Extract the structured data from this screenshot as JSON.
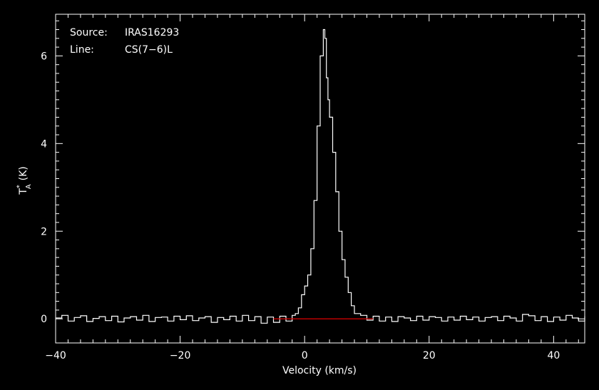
{
  "chart_data": {
    "type": "line",
    "title": "",
    "annotations": [
      {
        "key": "Source:",
        "value": "IRAS16293"
      },
      {
        "key": "Line:",
        "value": "CS(7−6)L"
      }
    ],
    "xlabel": "Velocity (km/s)",
    "ylabel": {
      "symbol": "T",
      "sup": "*",
      "sub": "A",
      "unit": "(K)"
    },
    "xlim": [
      -40,
      45
    ],
    "ylim": [
      -0.55,
      6.95
    ],
    "x_major_ticks": [
      -40,
      -20,
      0,
      20,
      40
    ],
    "x_tick_labels": [
      "−40",
      "−20",
      "0",
      "20",
      "40"
    ],
    "y_major_ticks": [
      0,
      2,
      4,
      6
    ],
    "y_tick_labels": [
      "0",
      "2",
      "4",
      "6"
    ],
    "grid": false,
    "background": "#000000",
    "colors": {
      "spectrum": "#ffffff",
      "baseline": "#cc0000",
      "axes": "#ffffff"
    },
    "series": [
      {
        "style": "histogram",
        "color": "#ffffff",
        "x": [
          -40,
          -39,
          -38,
          -37,
          -36,
          -35,
          -34,
          -33,
          -32,
          -31,
          -30,
          -29,
          -28,
          -27,
          -26,
          -25,
          -24,
          -23,
          -22,
          -21,
          -20,
          -19,
          -18,
          -17,
          -16,
          -15,
          -14,
          -13,
          -12,
          -11,
          -10,
          -9,
          -8,
          -7,
          -6,
          -5,
          -4,
          -3,
          -2,
          -1.5,
          -1,
          -0.5,
          0,
          0.5,
          1,
          1.5,
          2,
          2.5,
          3,
          3.25,
          3.5,
          3.75,
          4,
          4.5,
          5,
          5.5,
          6,
          6.5,
          7,
          7.5,
          8,
          9,
          10,
          11,
          12,
          13,
          14,
          15,
          16,
          17,
          18,
          19,
          20,
          21,
          22,
          23,
          24,
          25,
          26,
          27,
          28,
          29,
          30,
          31,
          32,
          33,
          34,
          35,
          36,
          37,
          38,
          39,
          40,
          41,
          42,
          43,
          44,
          45
        ],
        "y": [
          0.02,
          0.08,
          -0.05,
          0.03,
          0.07,
          -0.06,
          0.01,
          0.05,
          -0.04,
          0.06,
          -0.07,
          0.02,
          0.05,
          -0.03,
          0.08,
          -0.06,
          0.03,
          0.04,
          -0.05,
          0.06,
          -0.02,
          0.07,
          -0.04,
          0.02,
          0.05,
          -0.08,
          0.03,
          -0.02,
          0.06,
          -0.05,
          0.08,
          -0.04,
          0.05,
          -0.1,
          0.04,
          -0.08,
          0.06,
          -0.05,
          0.08,
          0.12,
          0.25,
          0.55,
          0.75,
          1.0,
          1.6,
          2.7,
          4.4,
          6.0,
          6.6,
          6.4,
          5.5,
          5.0,
          4.6,
          3.8,
          2.9,
          2.0,
          1.35,
          0.95,
          0.6,
          0.3,
          0.12,
          0.08,
          -0.03,
          0.06,
          -0.05,
          0.04,
          -0.06,
          0.05,
          0.02,
          -0.04,
          0.06,
          -0.03,
          0.05,
          0.03,
          -0.05,
          0.04,
          -0.03,
          0.06,
          -0.02,
          0.04,
          -0.05,
          0.03,
          0.05,
          -0.04,
          0.06,
          0.02,
          -0.05,
          0.1,
          0.07,
          -0.04,
          0.05,
          -0.06,
          0.04,
          -0.03,
          0.08,
          0.02,
          -0.05,
          0.06
        ]
      },
      {
        "style": "line",
        "color": "#cc0000",
        "x": [
          -5,
          11
        ],
        "y": [
          0,
          0
        ]
      }
    ]
  }
}
